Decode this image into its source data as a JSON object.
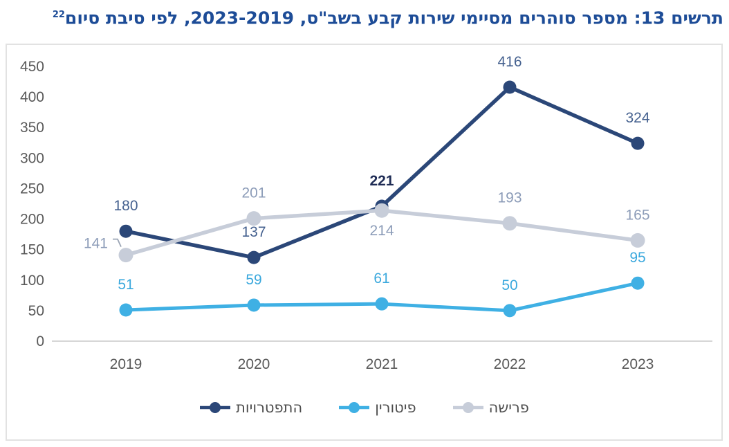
{
  "title": {
    "text": "תרשים 13: מספר סוהרים מסיימי שירות קבע בשב\"ס, 2023-2019, לפי סיבת סיום",
    "superscript": "22",
    "color": "#1d4c97"
  },
  "chart_data": {
    "type": "line",
    "categories": [
      "2019",
      "2020",
      "2021",
      "2022",
      "2023"
    ],
    "series": [
      {
        "name": "התפטרויות",
        "values": [
          180,
          137,
          221,
          416,
          324
        ],
        "color": "#2b4778",
        "label_color": "#45618f",
        "label_pos": [
          "above",
          "above",
          "above-bold",
          "above",
          "above"
        ],
        "marker_radius": 9.5,
        "line_width": 5.5
      },
      {
        "name": "פיטורין",
        "values": [
          51,
          59,
          61,
          50,
          95
        ],
        "color": "#3fb0e4",
        "label_color": "#3aa8dd",
        "label_pos": [
          "above",
          "above",
          "above",
          "above",
          "above"
        ],
        "marker_radius": 9.5,
        "line_width": 5
      },
      {
        "name": "פרישה",
        "values": [
          141,
          201,
          214,
          193,
          165
        ],
        "color": "#c7cdd9",
        "label_color": "#8c9cb8",
        "label_pos": [
          "leader-left",
          "above",
          "below",
          "above",
          "above"
        ],
        "marker_radius": 10.5,
        "line_width": 5.5
      }
    ],
    "ylim": [
      0,
      450
    ],
    "yticks": [
      0,
      50,
      100,
      150,
      200,
      250,
      300,
      350,
      400,
      450
    ],
    "grid": false,
    "legend_position": "bottom-center",
    "emphasis_label_color": "#1f2c55",
    "leader_line_color": "#9aa4b4"
  },
  "axis": {
    "text_color": "#595959",
    "line_color": "#d6d6d6"
  },
  "legend": {
    "text_color": "#4c4c4c"
  }
}
